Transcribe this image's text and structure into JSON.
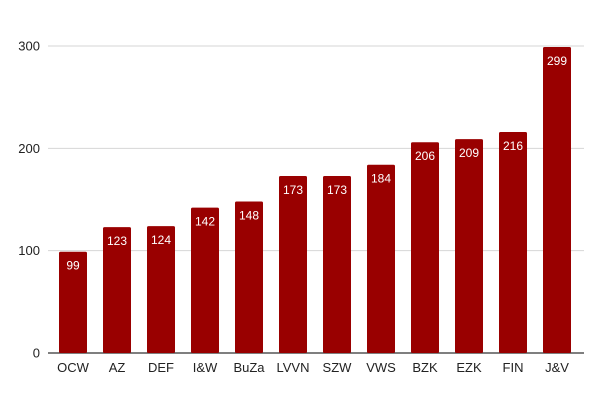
{
  "chart_data": {
    "type": "bar",
    "categories": [
      "OCW",
      "AZ",
      "DEF",
      "I&W",
      "BuZa",
      "LVVN",
      "SZW",
      "VWS",
      "BZK",
      "EZK",
      "FIN",
      "J&V"
    ],
    "values": [
      99,
      123,
      124,
      142,
      148,
      173,
      173,
      184,
      206,
      209,
      216,
      299
    ],
    "data_labels": [
      "99",
      "123",
      "124",
      "142",
      "148",
      "173",
      "173",
      "184",
      "206",
      "209",
      "216",
      "299"
    ],
    "title": "",
    "xlabel": "",
    "ylabel": "",
    "ylim": [
      0,
      300
    ],
    "yticks": [
      0,
      100,
      200,
      300
    ],
    "ytick_labels": [
      "0",
      "100",
      "200",
      "300"
    ],
    "grid": true,
    "legend": "none",
    "bar_color": "#990000"
  }
}
